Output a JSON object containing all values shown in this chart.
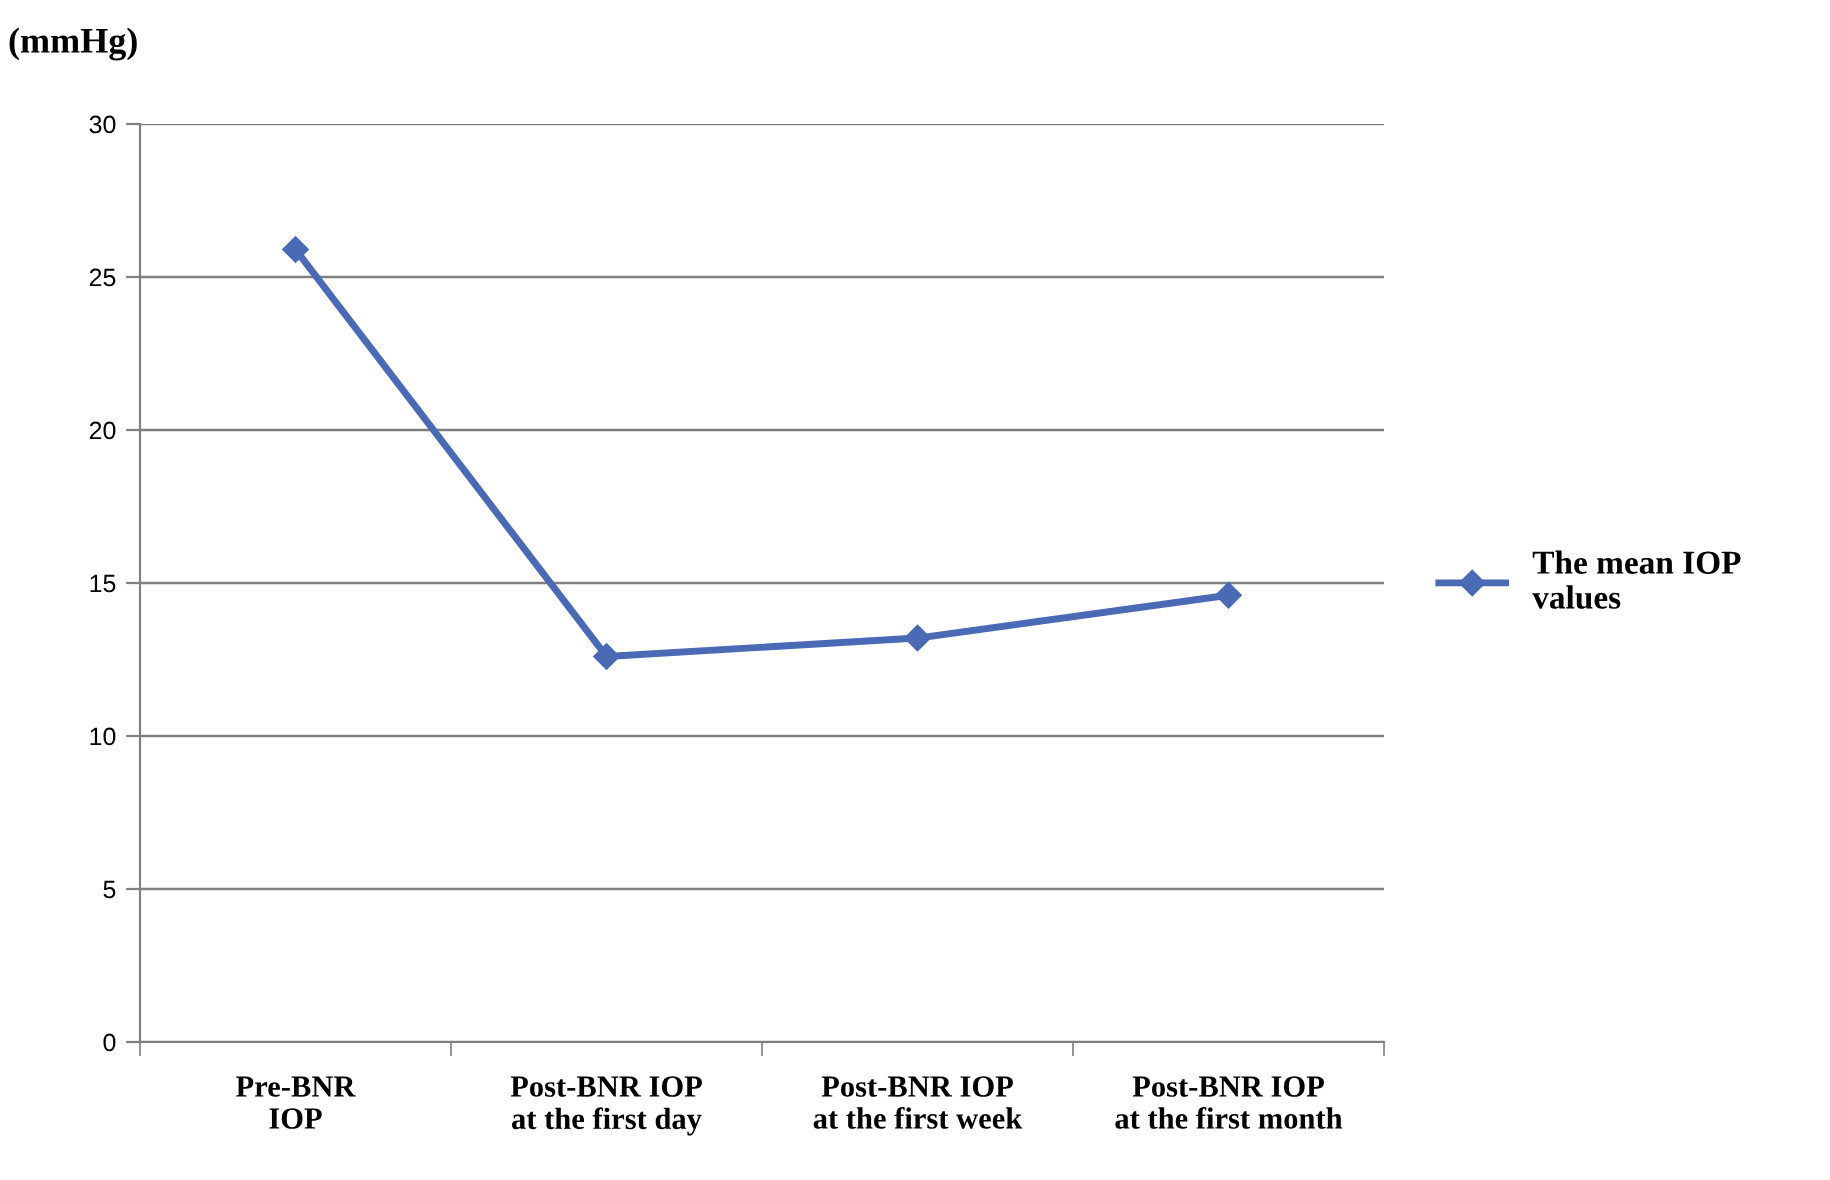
{
  "chart_data": {
    "type": "line",
    "ylabel": "(mmHg)",
    "categories": [
      "Pre-BNR\nIOP",
      "Post-BNR IOP\nat the first day",
      "Post-BNR IOP\nat the first week",
      "Post-BNR IOP\nat the first month"
    ],
    "series": [
      {
        "name": "The mean IOP\nvalues",
        "color": "#4a6ab5",
        "values": [
          25.9,
          12.6,
          13.2,
          14.6
        ]
      }
    ],
    "ylim": [
      0,
      30
    ],
    "yticks": [
      0,
      5,
      10,
      15,
      20,
      25,
      30
    ],
    "grid": "y",
    "legend": "right",
    "marker": "diamond",
    "line_style": "solid"
  }
}
